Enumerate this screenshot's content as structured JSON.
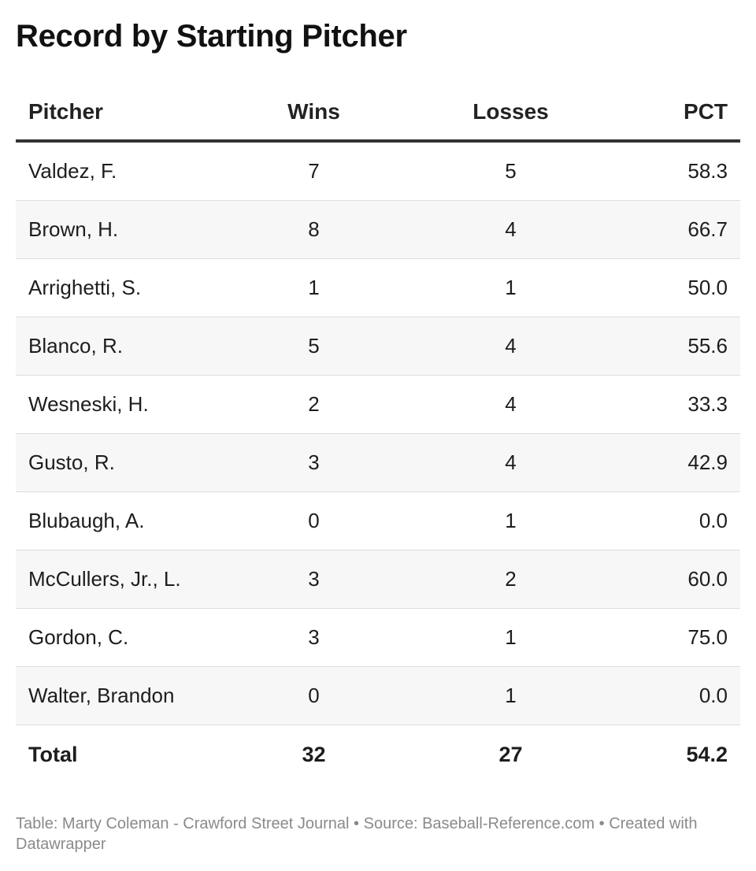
{
  "title": "Record by Starting Pitcher",
  "columns": {
    "pitcher": "Pitcher",
    "wins": "Wins",
    "losses": "Losses",
    "pct": "PCT"
  },
  "rows": [
    {
      "pitcher": "Valdez, F.",
      "wins": "7",
      "losses": "5",
      "pct": "58.3"
    },
    {
      "pitcher": "Brown, H.",
      "wins": "8",
      "losses": "4",
      "pct": "66.7"
    },
    {
      "pitcher": "Arrighetti, S.",
      "wins": "1",
      "losses": "1",
      "pct": "50.0"
    },
    {
      "pitcher": "Blanco, R.",
      "wins": "5",
      "losses": "4",
      "pct": "55.6"
    },
    {
      "pitcher": "Wesneski, H.",
      "wins": "2",
      "losses": "4",
      "pct": "33.3"
    },
    {
      "pitcher": "Gusto, R.",
      "wins": "3",
      "losses": "4",
      "pct": "42.9"
    },
    {
      "pitcher": "Blubaugh, A.",
      "wins": "0",
      "losses": "1",
      "pct": "0.0"
    },
    {
      "pitcher": "McCullers, Jr., L.",
      "wins": "3",
      "losses": "2",
      "pct": "60.0"
    },
    {
      "pitcher": "Gordon, C.",
      "wins": "3",
      "losses": "1",
      "pct": "75.0"
    },
    {
      "pitcher": "Walter, Brandon",
      "wins": "0",
      "losses": "1",
      "pct": "0.0"
    }
  ],
  "total": {
    "pitcher": "Total",
    "wins": "32",
    "losses": "27",
    "pct": "54.2"
  },
  "footer": "Table: Marty Coleman - Crawford Street Journal • Source: Baseball-Reference.com • Created with Datawrapper",
  "chart_data": {
    "type": "table",
    "title": "Record by Starting Pitcher",
    "columns": [
      "Pitcher",
      "Wins",
      "Losses",
      "PCT"
    ],
    "rows": [
      [
        "Valdez, F.",
        7,
        5,
        58.3
      ],
      [
        "Brown, H.",
        8,
        4,
        66.7
      ],
      [
        "Arrighetti, S.",
        1,
        1,
        50.0
      ],
      [
        "Blanco, R.",
        5,
        4,
        55.6
      ],
      [
        "Wesneski, H.",
        2,
        4,
        33.3
      ],
      [
        "Gusto, R.",
        3,
        4,
        42.9
      ],
      [
        "Blubaugh, A.",
        0,
        1,
        0.0
      ],
      [
        "McCullers, Jr., L.",
        3,
        2,
        60.0
      ],
      [
        "Gordon, C.",
        3,
        1,
        75.0
      ],
      [
        "Walter, Brandon",
        0,
        1,
        0.0
      ]
    ],
    "total": [
      "Total",
      32,
      27,
      54.2
    ]
  }
}
